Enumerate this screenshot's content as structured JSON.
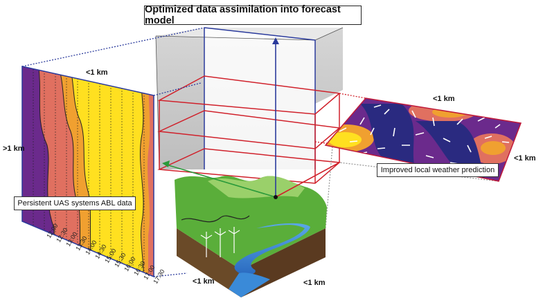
{
  "title": "Optimized data assimilation into forecast model",
  "left_panel": {
    "label": "Persistent UAS systems ABL data",
    "top_dimension": "<1 km",
    "side_dimension": ">1 km",
    "times": [
      "12:00",
      "12:30",
      "13:00",
      "13:30",
      "14:00",
      "14:30",
      "15:00",
      "15:30",
      "16:00",
      "16:30",
      "17:00",
      "17:30"
    ]
  },
  "right_panel": {
    "label": "Improved local weather prediction",
    "top_dimension": "<1 km",
    "side_dimension": "<1 km"
  },
  "terrain": {
    "left_dimension": "<1 km",
    "right_dimension": "<1 km"
  },
  "colors": {
    "purple": "#6b2a8c",
    "salmon": "#e07060",
    "orange": "#f0a030",
    "yellow": "#ffe020",
    "grid_red": "#d0202a",
    "column_blue": "#2a3a9c",
    "link_green": "#2a9a3a",
    "grass": "#5aae3a",
    "soil": "#6a4a28",
    "river": "#3a8ad8"
  }
}
